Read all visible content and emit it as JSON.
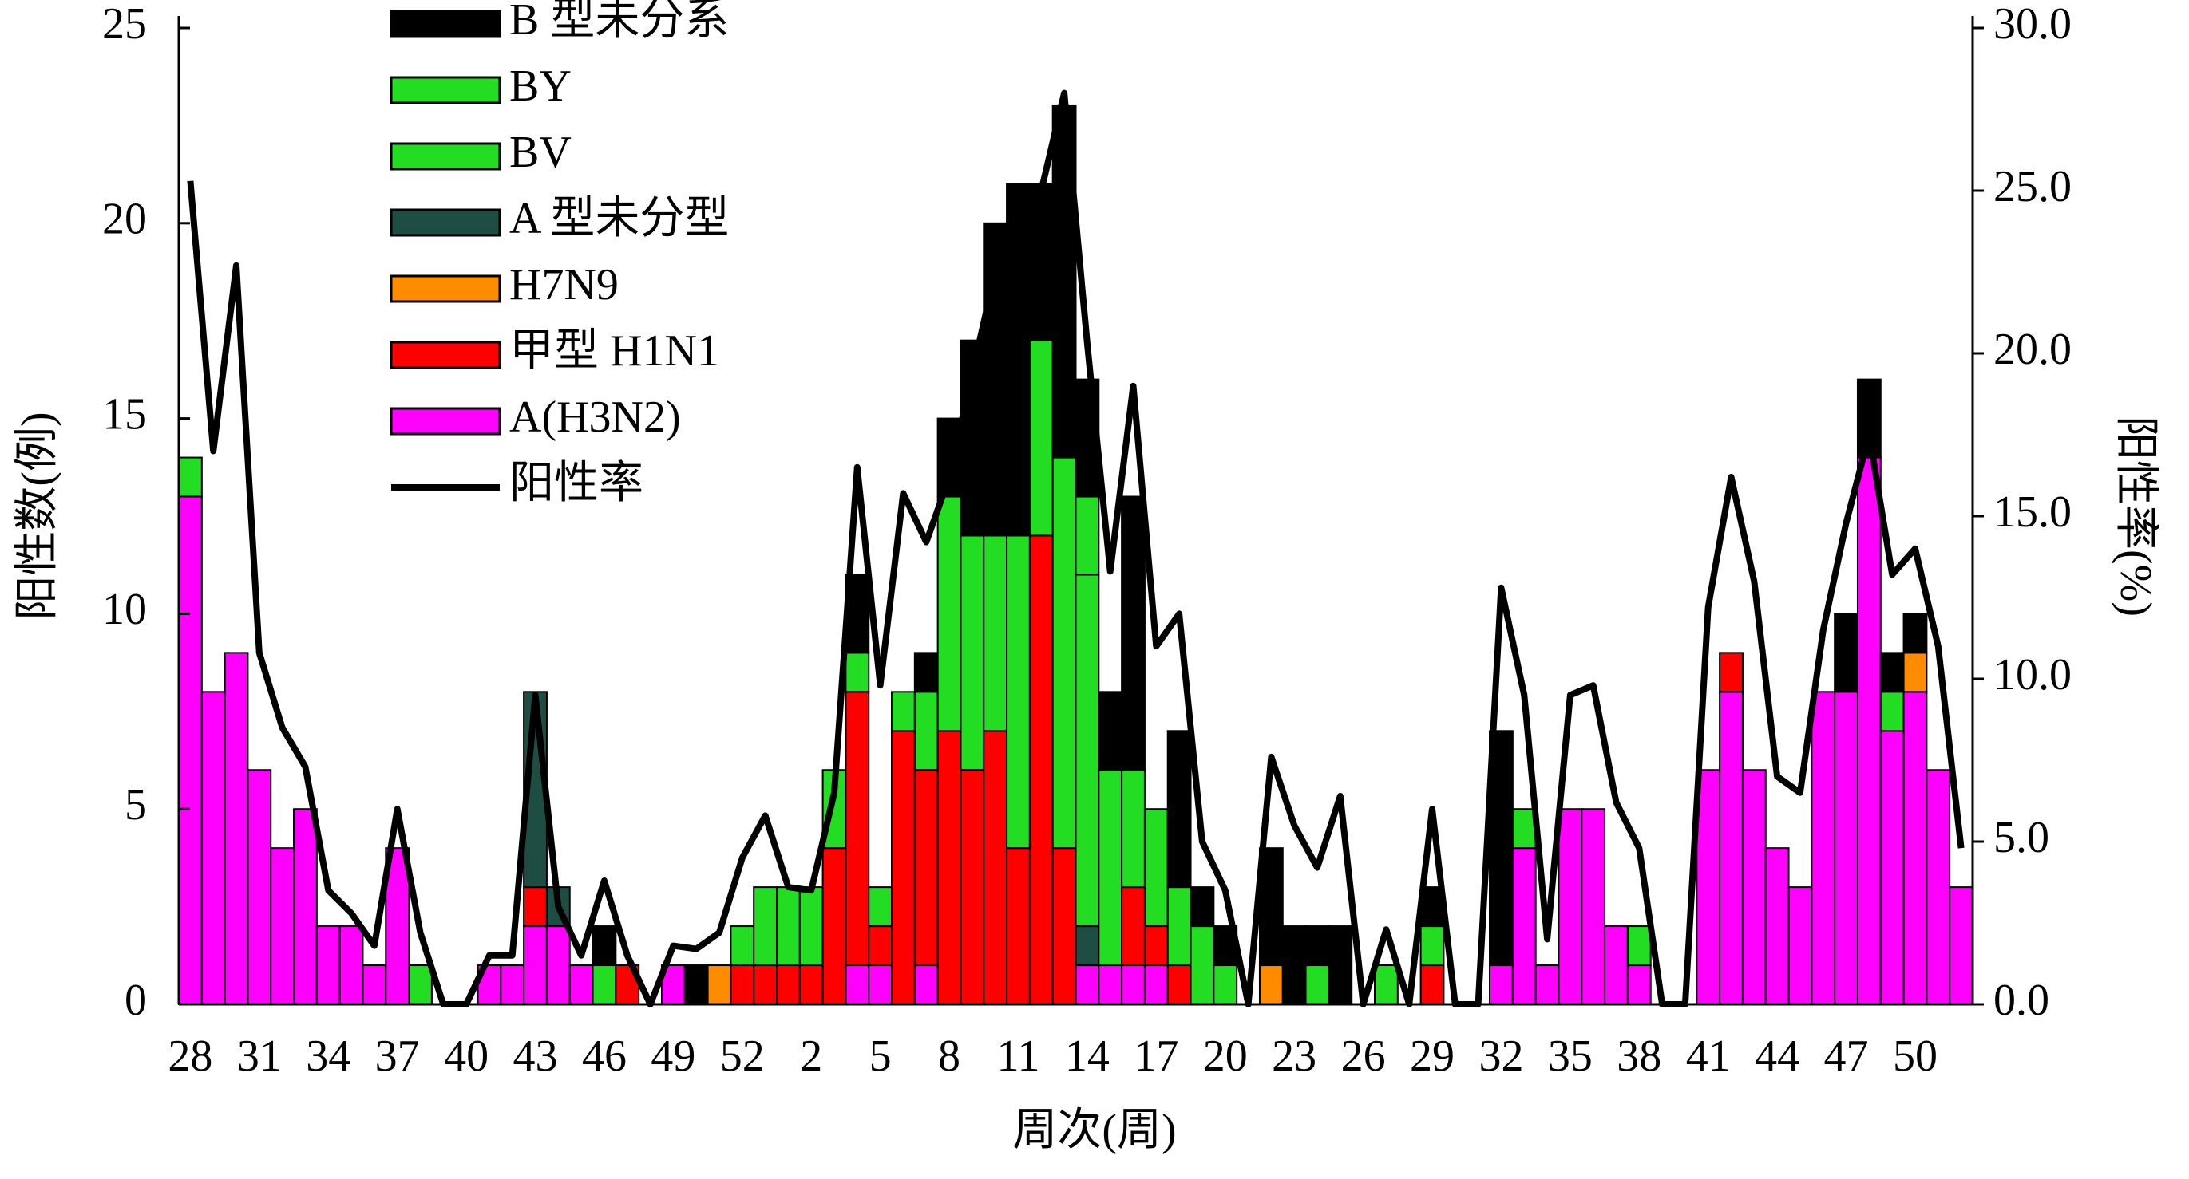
{
  "chart_data": {
    "type": "bar",
    "stacked": true,
    "x_label": "周次(周)",
    "y_label": "阳性数(例)",
    "y2_label": "阳性率(%)",
    "categories": [
      "28",
      null,
      null,
      "31",
      null,
      null,
      "34",
      null,
      null,
      "37",
      null,
      null,
      "40",
      null,
      null,
      "43",
      null,
      null,
      "46",
      null,
      null,
      "49",
      null,
      null,
      "52",
      null,
      null,
      "2",
      null,
      null,
      "5",
      null,
      null,
      "8",
      null,
      null,
      "11",
      null,
      null,
      "14",
      null,
      null,
      "17",
      null,
      null,
      "20",
      null,
      null,
      "23",
      null,
      null,
      "26",
      null,
      null,
      "29",
      null,
      null,
      "32",
      null,
      null,
      "35",
      null,
      null,
      "38",
      null,
      null,
      "41",
      null,
      null,
      "44",
      null,
      null,
      "47",
      null,
      null,
      "50",
      null,
      null
    ],
    "ylim": [
      0,
      25
    ],
    "yticks": [
      0,
      5,
      10,
      15,
      20,
      25
    ],
    "y2lim": [
      0,
      30
    ],
    "y2ticks": [
      {
        "value": 0,
        "label": "0.0"
      },
      {
        "value": 5,
        "label": "5.0"
      },
      {
        "value": 10,
        "label": "10.0"
      },
      {
        "value": 15,
        "label": "15.0"
      },
      {
        "value": 20,
        "label": "20.0"
      },
      {
        "value": 25,
        "label": "25.0"
      },
      {
        "value": 30,
        "label": "30.0"
      }
    ],
    "legend": "upper left",
    "series": [
      {
        "name": "A(H3N2)",
        "color": "#ff00ff",
        "values": [
          13,
          8,
          9,
          6,
          4,
          5,
          2,
          2,
          1,
          4,
          0,
          0,
          0,
          1,
          1,
          2,
          2,
          1,
          0,
          0,
          0,
          1,
          0,
          0,
          0,
          0,
          0,
          0,
          0,
          1,
          1,
          0,
          1,
          0,
          0,
          0,
          0,
          0,
          0,
          1,
          1,
          1,
          1,
          0,
          0,
          0,
          0,
          0,
          0,
          0,
          0,
          0,
          0,
          0,
          0,
          0,
          0,
          1,
          4,
          1,
          5,
          5,
          2,
          1,
          0,
          0,
          6,
          8,
          6,
          4,
          3,
          8,
          8,
          14,
          7,
          8,
          6,
          3
        ]
      },
      {
        "name": "甲型 H1N1",
        "color": "#ff0000",
        "values": [
          0,
          0,
          0,
          0,
          0,
          0,
          0,
          0,
          0,
          0,
          0,
          0,
          0,
          0,
          0,
          1,
          0,
          0,
          0,
          1,
          0,
          0,
          0,
          0,
          1,
          1,
          1,
          1,
          4,
          7,
          1,
          7,
          5,
          7,
          6,
          7,
          4,
          12,
          4,
          0,
          0,
          2,
          1,
          1,
          0,
          0,
          0,
          0,
          0,
          0,
          0,
          0,
          0,
          0,
          1,
          0,
          0,
          0,
          0,
          0,
          0,
          0,
          0,
          0,
          0,
          0,
          0,
          1,
          0,
          0,
          0,
          0,
          0,
          0,
          0,
          0,
          0,
          0
        ]
      },
      {
        "name": "H7N9",
        "color": "#ff8c00",
        "values": [
          0,
          0,
          0,
          0,
          0,
          0,
          0,
          0,
          0,
          0,
          0,
          0,
          0,
          0,
          0,
          0,
          0,
          0,
          0,
          0,
          0,
          0,
          0,
          1,
          0,
          0,
          0,
          0,
          0,
          0,
          0,
          0,
          0,
          0,
          0,
          0,
          0,
          0,
          0,
          0,
          0,
          0,
          0,
          0,
          0,
          0,
          0,
          1,
          0,
          0,
          0,
          0,
          0,
          0,
          0,
          0,
          0,
          0,
          0,
          0,
          0,
          0,
          0,
          0,
          0,
          0,
          0,
          0,
          0,
          0,
          0,
          0,
          0,
          0,
          0,
          1,
          0,
          0
        ]
      },
      {
        "name": "A 型未分型",
        "color": "#1e4d44",
        "values": [
          0,
          0,
          0,
          0,
          0,
          0,
          0,
          0,
          0,
          0,
          0,
          0,
          0,
          0,
          0,
          5,
          1,
          0,
          0,
          0,
          0,
          0,
          0,
          0,
          0,
          0,
          0,
          0,
          0,
          0,
          0,
          0,
          0,
          0,
          0,
          0,
          0,
          0,
          0,
          1,
          0,
          0,
          0,
          0,
          0,
          0,
          0,
          0,
          0,
          0,
          0,
          0,
          0,
          0,
          0,
          0,
          0,
          0,
          0,
          0,
          0,
          0,
          0,
          0,
          0,
          0,
          0,
          0,
          0,
          0,
          0,
          0,
          0,
          0,
          0,
          0,
          0,
          0
        ]
      },
      {
        "name": "BV",
        "color": "#22dd22",
        "values": [
          0,
          0,
          0,
          0,
          0,
          0,
          0,
          0,
          0,
          0,
          1,
          0,
          0,
          0,
          0,
          0,
          0,
          0,
          1,
          0,
          0,
          0,
          0,
          0,
          1,
          2,
          2,
          2,
          2,
          1,
          1,
          1,
          2,
          6,
          6,
          5,
          8,
          5,
          10,
          9,
          5,
          3,
          3,
          2,
          2,
          1,
          0,
          0,
          0,
          1,
          0,
          0,
          1,
          0,
          1,
          0,
          0,
          0,
          1,
          0,
          0,
          0,
          0,
          1,
          0,
          0,
          0,
          0,
          0,
          0,
          0,
          0,
          0,
          0,
          1,
          0,
          0,
          0
        ]
      },
      {
        "name": "BY",
        "color": "#22dd22",
        "values": [
          1,
          0,
          0,
          0,
          0,
          0,
          0,
          0,
          0,
          0,
          0,
          0,
          0,
          0,
          0,
          0,
          0,
          0,
          0,
          0,
          0,
          0,
          0,
          0,
          0,
          0,
          0,
          0,
          0,
          0,
          0,
          0,
          0,
          0,
          0,
          0,
          0,
          0,
          0,
          2,
          0,
          0,
          0,
          0,
          0,
          0,
          0,
          0,
          0,
          0,
          0,
          0,
          0,
          0,
          0,
          0,
          0,
          0,
          0,
          0,
          0,
          0,
          0,
          0,
          0,
          0,
          0,
          0,
          0,
          0,
          0,
          0,
          0,
          0,
          0,
          0,
          0,
          0
        ]
      },
      {
        "name": "B 型未分系",
        "color": "#000000",
        "values": [
          0,
          0,
          0,
          0,
          0,
          0,
          0,
          0,
          0,
          0,
          0,
          0,
          0,
          0,
          0,
          0,
          0,
          0,
          1,
          0,
          0,
          0,
          1,
          0,
          0,
          0,
          0,
          0,
          0,
          2,
          0,
          0,
          1,
          2,
          5,
          8,
          9,
          4,
          9,
          3,
          2,
          7,
          0,
          4,
          1,
          1,
          0,
          3,
          2,
          1,
          2,
          0,
          0,
          0,
          1,
          0,
          0,
          6,
          0,
          0,
          0,
          0,
          0,
          0,
          0,
          0,
          0,
          0,
          0,
          0,
          0,
          0,
          2,
          2,
          1,
          1,
          0,
          0
        ]
      },
      {
        "name": "阳性率",
        "type": "line",
        "axis": "y2",
        "color": "#000000",
        "values": [
          25.3,
          17,
          22.7,
          10.8,
          8.5,
          7.3,
          3.5,
          2.8,
          1.8,
          6,
          2.2,
          0,
          0,
          1.5,
          1.5,
          9.5,
          3,
          1.5,
          3.8,
          1.5,
          0,
          1.8,
          1.7,
          2.2,
          4.5,
          5.8,
          3.6,
          3.5,
          6.5,
          16.5,
          9.8,
          15.7,
          14.2,
          16.2,
          19.4,
          22.5,
          22.8,
          25,
          28,
          20.3,
          13.3,
          19,
          11,
          12,
          5,
          3.5,
          0,
          7.6,
          5.5,
          4.2,
          6.4,
          0,
          2.3,
          0,
          6,
          0,
          0,
          12.8,
          9.5,
          2,
          9.5,
          9.8,
          6.2,
          4.8,
          0,
          0,
          12.2,
          16.2,
          13,
          7,
          6.5,
          11.5,
          14.8,
          17.5,
          13.2,
          14,
          11,
          4.8
        ]
      }
    ]
  }
}
